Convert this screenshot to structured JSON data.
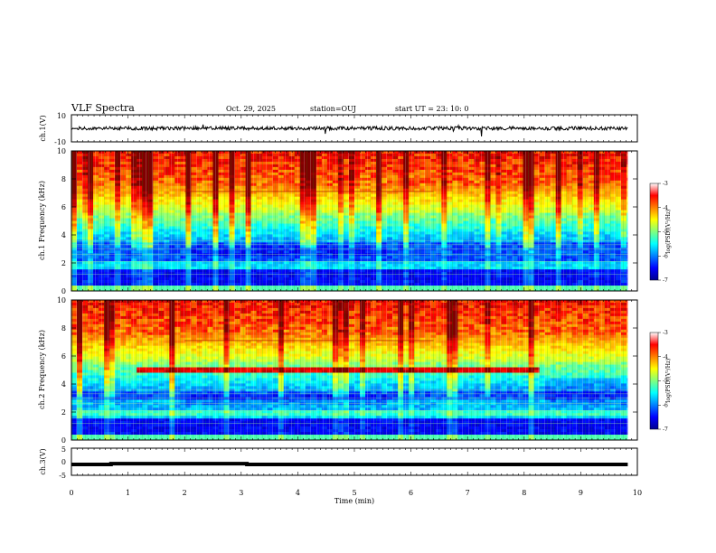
{
  "header": {
    "title": "VLF Spectra",
    "date": "Oct. 29, 2025",
    "station": "station=OUJ",
    "start": "start  UT  =  23: 10: 0"
  },
  "colors": {
    "spec_low": "#0000a0",
    "spec_high": "#ff0000",
    "trace": "#000000"
  },
  "chart_data": [
    {
      "type": "line",
      "name": "ch1-waveform",
      "ylabel": "ch.1(V)",
      "ylim": [
        -10,
        10
      ],
      "y_ticks": [
        "10",
        "-10"
      ],
      "x_range": [
        0,
        9.83
      ]
    },
    {
      "type": "heatmap",
      "name": "ch1-spectrogram",
      "ylabel": "ch.1 Frequency (kHz)",
      "ylim": [
        0,
        10
      ],
      "y_ticks": [
        "0",
        "2",
        "4",
        "6",
        "8",
        "10"
      ],
      "colorbar": {
        "label": "log(PSD)(V²/Hz)",
        "range": [
          -7,
          -3
        ],
        "ticks": [
          "-3",
          "-4",
          "-5",
          "-6",
          "-7"
        ]
      }
    },
    {
      "type": "heatmap",
      "name": "ch2-spectrogram",
      "ylabel": "ch.2 Frequency (kHz)",
      "ylim": [
        0,
        10
      ],
      "y_ticks": [
        "0",
        "2",
        "4",
        "6",
        "8",
        "10"
      ],
      "bright_band": {
        "freq_khz": 5.0,
        "t_start_min": 1.1,
        "t_end_min": 8.1
      },
      "colorbar": {
        "label": "log(PSD)(V²/Hz)",
        "range": [
          -7,
          -3
        ],
        "ticks": [
          "-3",
          "-4",
          "-5",
          "-6",
          "-7"
        ]
      }
    },
    {
      "type": "line",
      "name": "ch3-signal",
      "ylabel": "ch.3(V)",
      "ylim": [
        -5,
        5
      ],
      "y_ticks": [
        "5",
        "0",
        "-5"
      ],
      "x": [
        0,
        0.7,
        0.7,
        3.1,
        3.1,
        9.83
      ],
      "y": [
        -1,
        -1,
        -0.7,
        -0.7,
        -1,
        -1
      ]
    }
  ],
  "xaxis": {
    "label": "Time  (min)",
    "range": [
      0,
      10
    ],
    "ticks": [
      "0",
      "1",
      "2",
      "3",
      "4",
      "5",
      "6",
      "7",
      "8",
      "9",
      "10"
    ]
  }
}
